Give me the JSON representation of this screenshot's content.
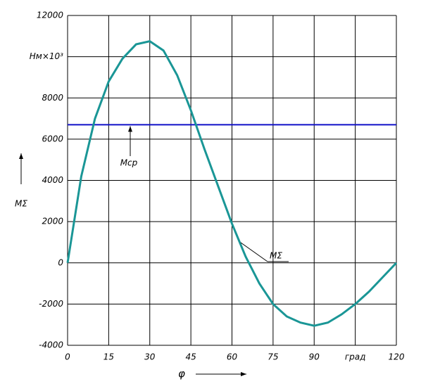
{
  "chart_data": {
    "type": "line",
    "x_label": "φ",
    "y_label": "МΣ",
    "x": [
      0,
      5,
      10,
      15,
      20,
      25,
      30,
      35,
      40,
      45,
      50,
      55,
      60,
      65,
      70,
      75,
      80,
      85,
      90,
      95,
      100,
      105,
      110,
      115,
      120
    ],
    "series": [
      {
        "name": "МΣ",
        "color": "#1a9696",
        "values": [
          0,
          4200,
          7000,
          8800,
          9900,
          10600,
          10750,
          10300,
          9100,
          7400,
          5500,
          3700,
          1900,
          300,
          -1000,
          -2000,
          -2600,
          -2900,
          -3050,
          -2900,
          -2500,
          -2000,
          -1400,
          -700,
          0
        ]
      }
    ],
    "mean_line": {
      "name": "Мср",
      "value": 6700,
      "color": "#1010c8"
    },
    "xlim": [
      0,
      120
    ],
    "xticks": [
      0,
      15,
      30,
      45,
      60,
      75,
      90,
      {
        "value": 105,
        "label": "град"
      },
      120
    ],
    "ylim": [
      -4000,
      12000
    ],
    "yticks": [
      -4000,
      -2000,
      0,
      2000,
      4000,
      6000,
      8000,
      {
        "value": 10000,
        "label": "Нм×10³"
      },
      12000
    ],
    "grid": true
  }
}
